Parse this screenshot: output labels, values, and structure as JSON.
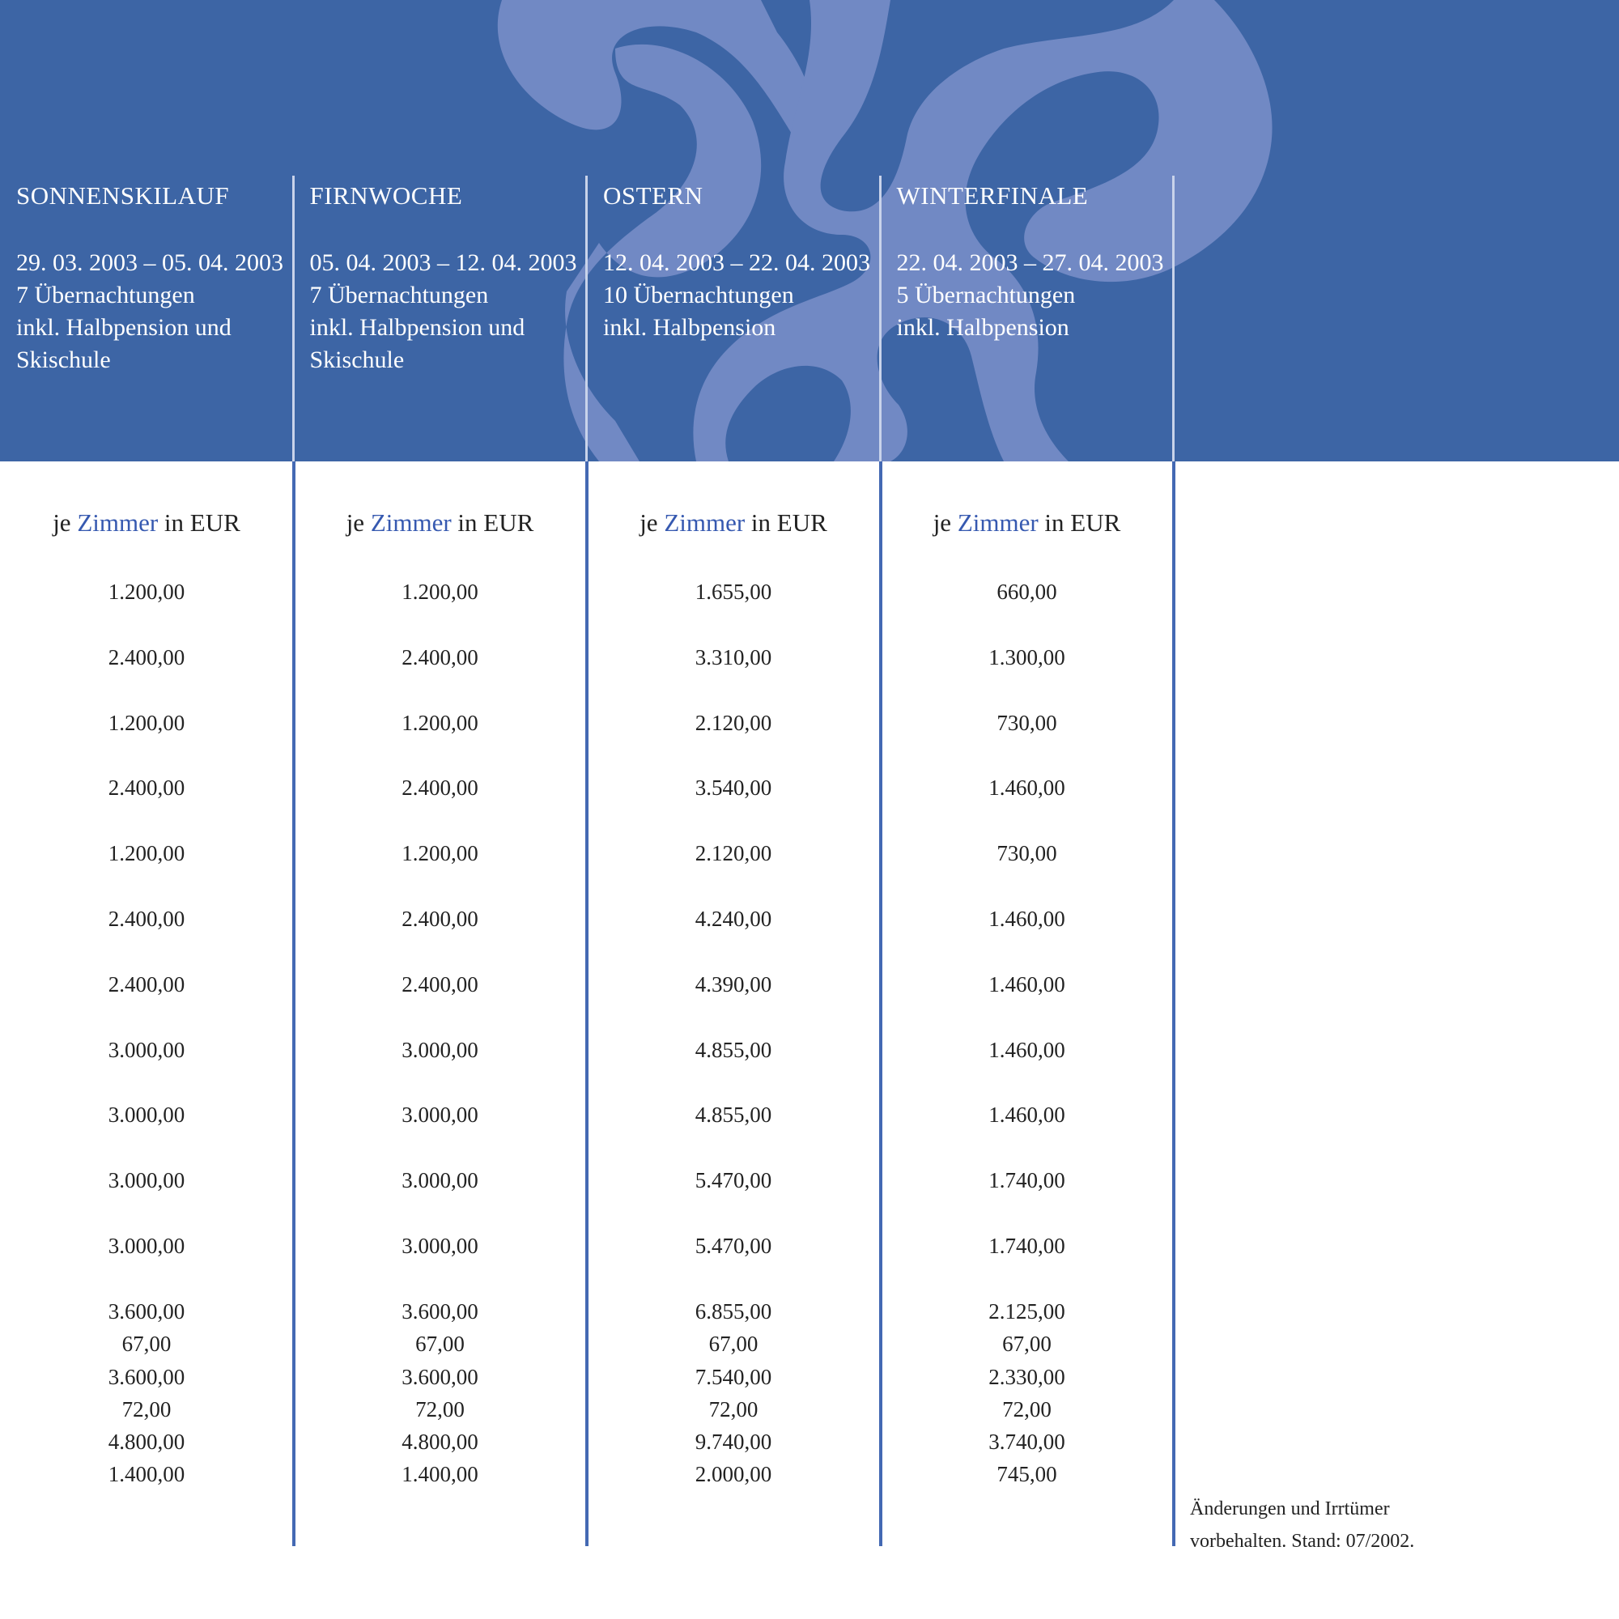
{
  "colors": {
    "header_bg": "#3d65a5",
    "ornament": "#7189c4",
    "accent": "#3659b0",
    "divider": "#4469b3"
  },
  "ornament_icon": "fleur-de-lis-ornament",
  "unit_label": {
    "prefix": "je",
    "highlight": "Zimmer",
    "suffix": "in EUR"
  },
  "columns": [
    {
      "title": "SONNENSKILAUF",
      "lines": [
        "29. 03. 2003 – 05. 04. 2003",
        "7 Übernachtungen",
        "inkl. Halbpension und",
        "Skischule"
      ],
      "values": [
        [
          "1.200,00"
        ],
        [
          "2.400,00"
        ],
        [
          "1.200,00"
        ],
        [
          "2.400,00"
        ],
        [
          "1.200,00"
        ],
        [
          "2.400,00"
        ],
        [
          "2.400,00"
        ],
        [
          "3.000,00"
        ],
        [
          "3.000,00"
        ],
        [
          "3.000,00"
        ],
        [
          "3.000,00"
        ],
        [
          "3.600,00",
          "67,00"
        ],
        [
          "3.600,00",
          "72,00"
        ],
        [
          "4.800,00",
          "1.400,00"
        ]
      ]
    },
    {
      "title": "FIRNWOCHE",
      "lines": [
        "05. 04. 2003 – 12. 04. 2003",
        "7 Übernachtungen",
        "inkl. Halbpension und",
        "Skischule"
      ],
      "values": [
        [
          "1.200,00"
        ],
        [
          "2.400,00"
        ],
        [
          "1.200,00"
        ],
        [
          "2.400,00"
        ],
        [
          "1.200,00"
        ],
        [
          "2.400,00"
        ],
        [
          "2.400,00"
        ],
        [
          "3.000,00"
        ],
        [
          "3.000,00"
        ],
        [
          "3.000,00"
        ],
        [
          "3.000,00"
        ],
        [
          "3.600,00",
          "67,00"
        ],
        [
          "3.600,00",
          "72,00"
        ],
        [
          "4.800,00",
          "1.400,00"
        ]
      ]
    },
    {
      "title": "OSTERN",
      "lines": [
        "12. 04. 2003 – 22. 04. 2003",
        "10 Übernachtungen",
        "inkl. Halbpension"
      ],
      "values": [
        [
          "1.655,00"
        ],
        [
          "3.310,00"
        ],
        [
          "2.120,00"
        ],
        [
          "3.540,00"
        ],
        [
          "2.120,00"
        ],
        [
          "4.240,00"
        ],
        [
          "4.390,00"
        ],
        [
          "4.855,00"
        ],
        [
          "4.855,00"
        ],
        [
          "5.470,00"
        ],
        [
          "5.470,00"
        ],
        [
          "6.855,00",
          "67,00"
        ],
        [
          "7.540,00",
          "72,00"
        ],
        [
          "9.740,00",
          "2.000,00"
        ]
      ]
    },
    {
      "title": "WINTERFINALE",
      "lines": [
        "22. 04. 2003 – 27. 04. 2003",
        "5 Übernachtungen",
        "inkl. Halbpension"
      ],
      "values": [
        [
          "660,00"
        ],
        [
          "1.300,00"
        ],
        [
          "730,00"
        ],
        [
          "1.460,00"
        ],
        [
          "730,00"
        ],
        [
          "1.460,00"
        ],
        [
          "1.460,00"
        ],
        [
          "1.460,00"
        ],
        [
          "1.460,00"
        ],
        [
          "1.740,00"
        ],
        [
          "1.740,00"
        ],
        [
          "2.125,00",
          "67,00"
        ],
        [
          "2.330,00",
          "72,00"
        ],
        [
          "3.740,00",
          "745,00"
        ]
      ]
    }
  ],
  "note": [
    "Änderungen und Irrtümer",
    "vorbehalten. Stand: 07/2002."
  ]
}
